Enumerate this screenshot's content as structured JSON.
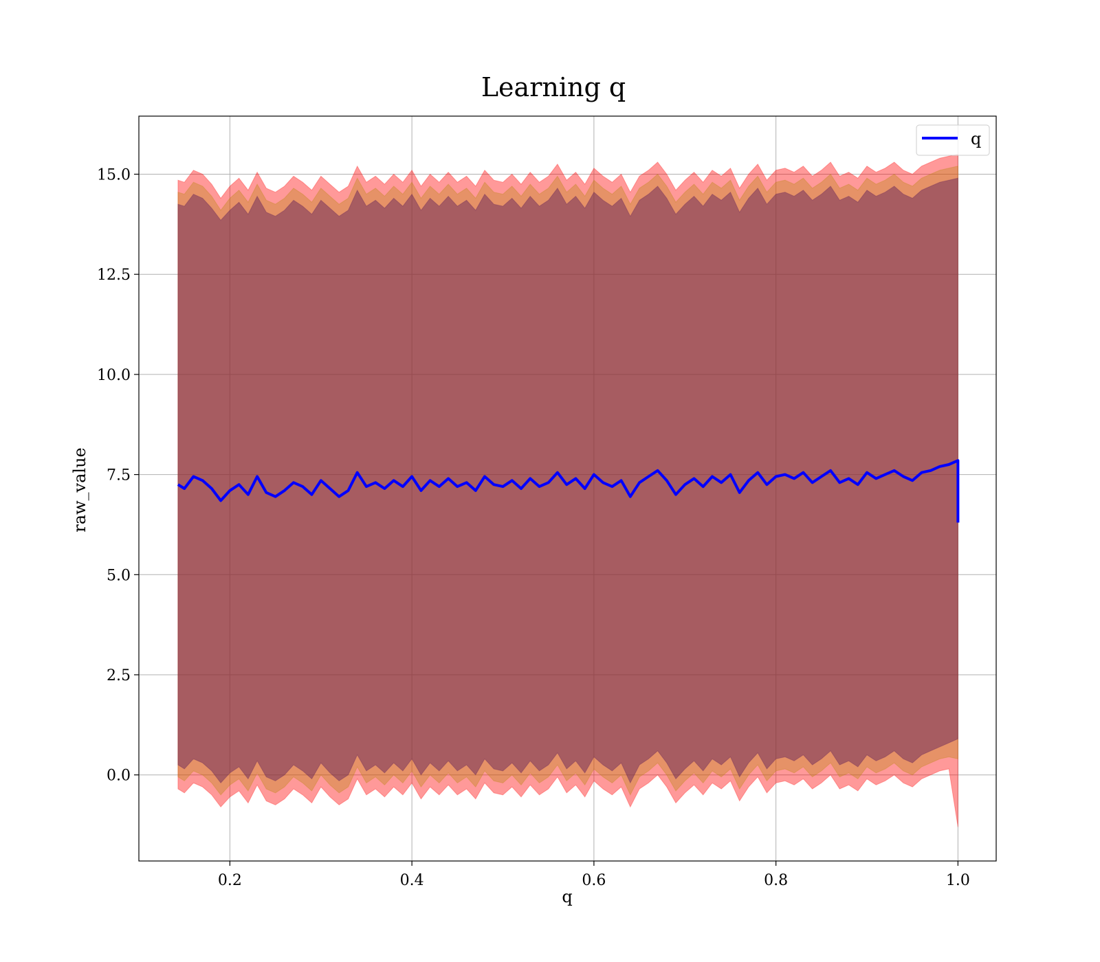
{
  "chart_data": {
    "type": "line",
    "title": "Learning q",
    "xlabel": "q",
    "ylabel": "raw_value",
    "xlim": [
      0.1,
      1.042
    ],
    "ylim": [
      -2.15,
      16.45
    ],
    "xticks": [
      0.2,
      0.4,
      0.6,
      0.8,
      1.0
    ],
    "xtick_labels": [
      "0.2",
      "0.4",
      "0.6",
      "0.8",
      "1.0"
    ],
    "yticks": [
      0.0,
      2.5,
      5.0,
      7.5,
      10.0,
      12.5,
      15.0
    ],
    "ytick_labels": [
      "0.0",
      "2.5",
      "5.0",
      "7.5",
      "10.0",
      "12.5",
      "15.0"
    ],
    "grid": true,
    "legend": {
      "position": "top-right",
      "entries": [
        "q"
      ]
    },
    "series": [
      {
        "name": "q",
        "color": "#0000ff",
        "x": [
          0.143,
          0.15,
          0.16,
          0.17,
          0.18,
          0.19,
          0.2,
          0.21,
          0.22,
          0.23,
          0.24,
          0.25,
          0.26,
          0.27,
          0.28,
          0.29,
          0.3,
          0.31,
          0.32,
          0.33,
          0.34,
          0.35,
          0.36,
          0.37,
          0.38,
          0.39,
          0.4,
          0.41,
          0.42,
          0.43,
          0.44,
          0.45,
          0.46,
          0.47,
          0.48,
          0.49,
          0.5,
          0.51,
          0.52,
          0.53,
          0.54,
          0.55,
          0.56,
          0.57,
          0.58,
          0.59,
          0.6,
          0.61,
          0.62,
          0.63,
          0.64,
          0.65,
          0.66,
          0.67,
          0.68,
          0.69,
          0.7,
          0.71,
          0.72,
          0.73,
          0.74,
          0.75,
          0.76,
          0.77,
          0.78,
          0.79,
          0.8,
          0.81,
          0.82,
          0.83,
          0.84,
          0.85,
          0.86,
          0.87,
          0.88,
          0.89,
          0.9,
          0.91,
          0.92,
          0.93,
          0.94,
          0.95,
          0.96,
          0.97,
          0.98,
          0.99,
          1.0,
          1.0
        ],
        "y": [
          7.25,
          7.15,
          7.45,
          7.35,
          7.15,
          6.85,
          7.1,
          7.25,
          7.0,
          7.45,
          7.05,
          6.95,
          7.1,
          7.3,
          7.2,
          7.0,
          7.35,
          7.15,
          6.95,
          7.1,
          7.55,
          7.2,
          7.3,
          7.15,
          7.35,
          7.2,
          7.45,
          7.1,
          7.35,
          7.2,
          7.4,
          7.2,
          7.3,
          7.1,
          7.45,
          7.25,
          7.2,
          7.35,
          7.15,
          7.4,
          7.2,
          7.3,
          7.55,
          7.25,
          7.4,
          7.15,
          7.5,
          7.3,
          7.2,
          7.35,
          6.95,
          7.3,
          7.45,
          7.6,
          7.35,
          7.0,
          7.25,
          7.4,
          7.2,
          7.45,
          7.3,
          7.5,
          7.05,
          7.35,
          7.55,
          7.25,
          7.45,
          7.5,
          7.4,
          7.55,
          7.3,
          7.45,
          7.6,
          7.3,
          7.4,
          7.25,
          7.55,
          7.4,
          7.5,
          7.6,
          7.45,
          7.35,
          7.55,
          7.6,
          7.7,
          7.75,
          7.85,
          6.3
        ]
      }
    ],
    "bands": [
      {
        "role": "outer",
        "color": "#ff0000",
        "opacity": 0.4,
        "x": [
          0.143,
          0.15,
          0.16,
          0.17,
          0.18,
          0.19,
          0.2,
          0.21,
          0.22,
          0.23,
          0.24,
          0.25,
          0.26,
          0.27,
          0.28,
          0.29,
          0.3,
          0.31,
          0.32,
          0.33,
          0.34,
          0.35,
          0.36,
          0.37,
          0.38,
          0.39,
          0.4,
          0.41,
          0.42,
          0.43,
          0.44,
          0.45,
          0.46,
          0.47,
          0.48,
          0.49,
          0.5,
          0.51,
          0.52,
          0.53,
          0.54,
          0.55,
          0.56,
          0.57,
          0.58,
          0.59,
          0.6,
          0.61,
          0.62,
          0.63,
          0.64,
          0.65,
          0.66,
          0.67,
          0.68,
          0.69,
          0.7,
          0.71,
          0.72,
          0.73,
          0.74,
          0.75,
          0.76,
          0.77,
          0.78,
          0.79,
          0.8,
          0.81,
          0.82,
          0.83,
          0.84,
          0.85,
          0.86,
          0.87,
          0.88,
          0.89,
          0.9,
          0.91,
          0.92,
          0.93,
          0.94,
          0.95,
          0.96,
          0.97,
          0.98,
          0.99,
          1.0
        ],
        "upper": [
          14.85,
          14.8,
          15.1,
          15.0,
          14.75,
          14.4,
          14.7,
          14.9,
          14.6,
          15.05,
          14.65,
          14.55,
          14.7,
          14.95,
          14.8,
          14.6,
          14.95,
          14.75,
          14.55,
          14.7,
          15.2,
          14.8,
          14.95,
          14.75,
          15.0,
          14.8,
          15.1,
          14.7,
          15.0,
          14.8,
          15.05,
          14.8,
          14.95,
          14.7,
          15.1,
          14.85,
          14.8,
          15.0,
          14.75,
          15.05,
          14.8,
          14.95,
          15.25,
          14.85,
          15.05,
          14.75,
          15.15,
          14.95,
          14.8,
          15.0,
          14.55,
          14.95,
          15.1,
          15.3,
          15.0,
          14.6,
          14.85,
          15.05,
          14.8,
          15.1,
          14.95,
          15.15,
          14.65,
          15.0,
          15.25,
          14.85,
          15.1,
          15.15,
          15.05,
          15.2,
          14.95,
          15.1,
          15.3,
          14.95,
          15.05,
          14.9,
          15.2,
          15.05,
          15.15,
          15.3,
          15.1,
          15.0,
          15.2,
          15.3,
          15.4,
          15.45,
          15.5
        ],
        "lower": [
          -0.35,
          -0.45,
          -0.2,
          -0.3,
          -0.5,
          -0.8,
          -0.55,
          -0.4,
          -0.7,
          -0.25,
          -0.65,
          -0.75,
          -0.6,
          -0.35,
          -0.5,
          -0.7,
          -0.3,
          -0.55,
          -0.75,
          -0.6,
          -0.1,
          -0.5,
          -0.35,
          -0.55,
          -0.3,
          -0.5,
          -0.2,
          -0.6,
          -0.3,
          -0.5,
          -0.25,
          -0.5,
          -0.35,
          -0.6,
          -0.2,
          -0.45,
          -0.5,
          -0.3,
          -0.55,
          -0.25,
          -0.5,
          -0.35,
          -0.05,
          -0.45,
          -0.25,
          -0.55,
          -0.15,
          -0.35,
          -0.5,
          -0.3,
          -0.8,
          -0.35,
          -0.2,
          0.0,
          -0.3,
          -0.7,
          -0.45,
          -0.25,
          -0.5,
          -0.2,
          -0.35,
          -0.15,
          -0.65,
          -0.3,
          -0.05,
          -0.45,
          -0.2,
          -0.15,
          -0.25,
          -0.1,
          -0.35,
          -0.2,
          0.0,
          -0.35,
          -0.25,
          -0.4,
          -0.1,
          -0.25,
          -0.15,
          0.0,
          -0.2,
          -0.3,
          -0.1,
          0.0,
          0.1,
          0.15,
          -1.3
        ]
      },
      {
        "role": "middle",
        "color": "#b8860b",
        "opacity": 0.35,
        "x": [
          0.143,
          0.15,
          0.16,
          0.17,
          0.18,
          0.19,
          0.2,
          0.21,
          0.22,
          0.23,
          0.24,
          0.25,
          0.26,
          0.27,
          0.28,
          0.29,
          0.3,
          0.31,
          0.32,
          0.33,
          0.34,
          0.35,
          0.36,
          0.37,
          0.38,
          0.39,
          0.4,
          0.41,
          0.42,
          0.43,
          0.44,
          0.45,
          0.46,
          0.47,
          0.48,
          0.49,
          0.5,
          0.51,
          0.52,
          0.53,
          0.54,
          0.55,
          0.56,
          0.57,
          0.58,
          0.59,
          0.6,
          0.61,
          0.62,
          0.63,
          0.64,
          0.65,
          0.66,
          0.67,
          0.68,
          0.69,
          0.7,
          0.71,
          0.72,
          0.73,
          0.74,
          0.75,
          0.76,
          0.77,
          0.78,
          0.79,
          0.8,
          0.81,
          0.82,
          0.83,
          0.84,
          0.85,
          0.86,
          0.87,
          0.88,
          0.89,
          0.9,
          0.91,
          0.92,
          0.93,
          0.94,
          0.95,
          0.96,
          0.97,
          0.98,
          0.99,
          1.0
        ],
        "upper": [
          14.55,
          14.5,
          14.8,
          14.7,
          14.45,
          14.1,
          14.4,
          14.6,
          14.3,
          14.75,
          14.35,
          14.25,
          14.4,
          14.65,
          14.5,
          14.3,
          14.65,
          14.45,
          14.25,
          14.4,
          14.9,
          14.5,
          14.65,
          14.45,
          14.7,
          14.5,
          14.8,
          14.4,
          14.7,
          14.5,
          14.75,
          14.5,
          14.65,
          14.4,
          14.8,
          14.55,
          14.5,
          14.7,
          14.45,
          14.75,
          14.5,
          14.65,
          14.95,
          14.55,
          14.75,
          14.45,
          14.85,
          14.65,
          14.5,
          14.7,
          14.25,
          14.65,
          14.8,
          15.0,
          14.7,
          14.3,
          14.55,
          14.75,
          14.5,
          14.8,
          14.65,
          14.85,
          14.35,
          14.7,
          14.95,
          14.55,
          14.8,
          14.85,
          14.75,
          14.9,
          14.65,
          14.8,
          15.0,
          14.65,
          14.75,
          14.6,
          14.9,
          14.75,
          14.85,
          15.0,
          14.8,
          14.7,
          14.9,
          15.0,
          15.1,
          15.15,
          15.2
        ],
        "lower": [
          -0.05,
          -0.15,
          0.1,
          0.0,
          -0.2,
          -0.5,
          -0.25,
          -0.1,
          -0.4,
          0.05,
          -0.35,
          -0.45,
          -0.3,
          -0.05,
          -0.2,
          -0.4,
          0.0,
          -0.25,
          -0.45,
          -0.3,
          0.2,
          -0.2,
          -0.05,
          -0.25,
          0.0,
          -0.2,
          0.1,
          -0.3,
          0.0,
          -0.2,
          0.05,
          -0.2,
          -0.05,
          -0.3,
          0.1,
          -0.15,
          -0.2,
          0.0,
          -0.25,
          0.05,
          -0.2,
          -0.05,
          0.25,
          -0.15,
          0.05,
          -0.25,
          0.15,
          -0.05,
          -0.2,
          0.0,
          -0.5,
          -0.05,
          0.1,
          0.3,
          0.0,
          -0.4,
          -0.15,
          0.05,
          -0.2,
          0.1,
          -0.05,
          0.15,
          -0.35,
          0.0,
          0.25,
          -0.15,
          0.1,
          0.15,
          0.05,
          0.2,
          -0.05,
          0.1,
          0.3,
          -0.05,
          0.05,
          -0.1,
          0.2,
          0.05,
          0.15,
          0.3,
          0.1,
          0.0,
          0.2,
          0.3,
          0.4,
          0.45,
          0.4
        ]
      },
      {
        "role": "inner",
        "color": "#5a1a5a",
        "opacity": 0.45,
        "x": [
          0.143,
          0.15,
          0.16,
          0.17,
          0.18,
          0.19,
          0.2,
          0.21,
          0.22,
          0.23,
          0.24,
          0.25,
          0.26,
          0.27,
          0.28,
          0.29,
          0.3,
          0.31,
          0.32,
          0.33,
          0.34,
          0.35,
          0.36,
          0.37,
          0.38,
          0.39,
          0.4,
          0.41,
          0.42,
          0.43,
          0.44,
          0.45,
          0.46,
          0.47,
          0.48,
          0.49,
          0.5,
          0.51,
          0.52,
          0.53,
          0.54,
          0.55,
          0.56,
          0.57,
          0.58,
          0.59,
          0.6,
          0.61,
          0.62,
          0.63,
          0.64,
          0.65,
          0.66,
          0.67,
          0.68,
          0.69,
          0.7,
          0.71,
          0.72,
          0.73,
          0.74,
          0.75,
          0.76,
          0.77,
          0.78,
          0.79,
          0.8,
          0.81,
          0.82,
          0.83,
          0.84,
          0.85,
          0.86,
          0.87,
          0.88,
          0.89,
          0.9,
          0.91,
          0.92,
          0.93,
          0.94,
          0.95,
          0.96,
          0.97,
          0.98,
          0.99,
          1.0
        ],
        "upper": [
          14.25,
          14.2,
          14.5,
          14.4,
          14.15,
          13.85,
          14.1,
          14.3,
          14.0,
          14.45,
          14.05,
          13.95,
          14.1,
          14.35,
          14.2,
          14.0,
          14.35,
          14.15,
          13.95,
          14.1,
          14.6,
          14.2,
          14.35,
          14.15,
          14.4,
          14.2,
          14.5,
          14.1,
          14.4,
          14.2,
          14.45,
          14.2,
          14.35,
          14.1,
          14.5,
          14.25,
          14.2,
          14.4,
          14.15,
          14.45,
          14.2,
          14.35,
          14.65,
          14.25,
          14.45,
          14.15,
          14.55,
          14.35,
          14.2,
          14.4,
          13.95,
          14.35,
          14.5,
          14.7,
          14.4,
          14.0,
          14.25,
          14.45,
          14.2,
          14.5,
          14.35,
          14.55,
          14.05,
          14.4,
          14.65,
          14.25,
          14.5,
          14.55,
          14.45,
          14.6,
          14.35,
          14.5,
          14.7,
          14.35,
          14.45,
          14.3,
          14.6,
          14.45,
          14.55,
          14.7,
          14.5,
          14.4,
          14.6,
          14.7,
          14.8,
          14.85,
          14.9
        ],
        "lower": [
          0.25,
          0.15,
          0.4,
          0.3,
          0.1,
          -0.2,
          0.05,
          0.2,
          -0.1,
          0.35,
          -0.05,
          -0.15,
          0.0,
          0.25,
          0.1,
          -0.1,
          0.3,
          0.05,
          -0.15,
          0.0,
          0.5,
          0.1,
          0.25,
          0.05,
          0.3,
          0.1,
          0.4,
          0.0,
          0.3,
          0.1,
          0.35,
          0.1,
          0.25,
          0.0,
          0.4,
          0.15,
          0.1,
          0.3,
          0.05,
          0.35,
          0.1,
          0.25,
          0.55,
          0.15,
          0.35,
          0.05,
          0.45,
          0.25,
          0.1,
          0.3,
          -0.2,
          0.25,
          0.4,
          0.6,
          0.3,
          -0.1,
          0.15,
          0.35,
          0.1,
          0.4,
          0.25,
          0.45,
          -0.05,
          0.3,
          0.55,
          0.15,
          0.4,
          0.45,
          0.35,
          0.5,
          0.25,
          0.4,
          0.6,
          0.25,
          0.35,
          0.2,
          0.5,
          0.35,
          0.45,
          0.6,
          0.4,
          0.3,
          0.5,
          0.6,
          0.7,
          0.8,
          0.9
        ]
      }
    ]
  }
}
